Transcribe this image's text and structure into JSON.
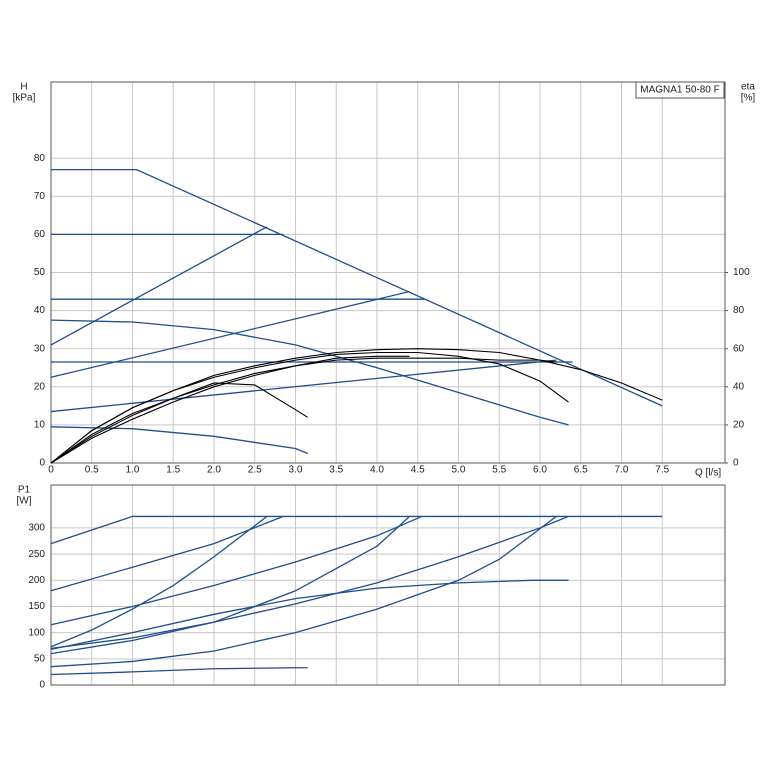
{
  "chart_data": [
    {
      "type": "line",
      "annotation": "MAGNA1 50-80 F",
      "ylabel": "H",
      "yunit": "[kPa]",
      "y2label": "eta",
      "y2unit": "[%]",
      "xlabel": "Q [l/s]",
      "xlim": [
        0,
        8.27
      ],
      "ylim": [
        0,
        100
      ],
      "y2lim": [
        0,
        200
      ],
      "grid": true,
      "xticks": [
        0,
        0.5,
        {
          "value": 1,
          "label": "1.0"
        },
        1.5,
        {
          "value": 2,
          "label": "2.0"
        },
        2.5,
        {
          "value": 3,
          "label": "3.0"
        },
        3.5,
        {
          "value": 4,
          "label": "4.0"
        },
        4.5,
        {
          "value": 5,
          "label": "5.0"
        },
        5.5,
        {
          "value": 6,
          "label": "6.0"
        },
        6.5,
        {
          "value": 7,
          "label": "7.0"
        },
        7.5
      ],
      "yticks": [
        0,
        10,
        20,
        30,
        40,
        50,
        60,
        70,
        80
      ],
      "y2ticks": [
        0,
        20,
        40,
        60,
        80,
        100
      ],
      "series": [
        {
          "color": "#1f4e8c",
          "x": [
            0,
            1.05,
            7.5
          ],
          "values": [
            77,
            77,
            15
          ]
        },
        {
          "color": "#1f4e8c",
          "x": [
            0,
            2.65
          ],
          "values": [
            31,
            62
          ]
        },
        {
          "color": "#1f4e8c",
          "x": [
            0,
            4.4
          ],
          "values": [
            22.5,
            45
          ]
        },
        {
          "color": "#1f4e8c",
          "x": [
            0,
            6.2
          ],
          "values": [
            13.5,
            27
          ]
        },
        {
          "color": "#1f4e8c",
          "x": [
            0,
            2.85
          ],
          "values": [
            60,
            60
          ]
        },
        {
          "color": "#1f4e8c",
          "x": [
            0,
            4.6
          ],
          "values": [
            43,
            43
          ]
        },
        {
          "color": "#1f4e8c",
          "x": [
            0,
            6.4
          ],
          "values": [
            26.5,
            26.5
          ]
        },
        {
          "color": "#1f4e8c",
          "x": [
            0,
            1,
            2,
            3,
            4,
            5,
            6,
            6.35
          ],
          "values": [
            37.5,
            37,
            35,
            31,
            25,
            18.5,
            12,
            10
          ]
        },
        {
          "color": "#1f4e8c",
          "x": [
            0,
            1,
            2,
            3,
            3.15
          ],
          "values": [
            9.5,
            9,
            7,
            3.8,
            2.5
          ]
        },
        {
          "color": "#000000",
          "axis": "y2",
          "x": [
            0,
            0.5,
            1,
            1.5,
            2,
            2.5,
            3,
            3.5,
            4,
            4.5,
            5,
            5.5,
            6,
            6.5,
            7,
            7.5
          ],
          "values": [
            0,
            17,
            29,
            38,
            46,
            51,
            55,
            58,
            59.5,
            60,
            59.5,
            58,
            54,
            49,
            42,
            33
          ]
        },
        {
          "color": "#000000",
          "axis": "y2",
          "x": [
            0,
            0.5,
            1,
            1.5,
            2,
            2.5,
            3,
            3.5,
            4,
            4.5,
            5,
            5.5,
            6,
            6.35
          ],
          "values": [
            0,
            17,
            29,
            38,
            45,
            50,
            54,
            57,
            58,
            58,
            56,
            52,
            43,
            32
          ]
        },
        {
          "color": "#000000",
          "axis": "y2",
          "x": [
            0,
            0.5,
            1,
            1.5,
            2,
            2.5,
            3,
            3.5,
            4,
            4.5,
            5,
            5.5,
            6,
            6.2
          ],
          "values": [
            0,
            14,
            25,
            34,
            41,
            47,
            51,
            54,
            55,
            55,
            55,
            54,
            54,
            53
          ]
        },
        {
          "color": "#000000",
          "axis": "y2",
          "x": [
            0,
            0.5,
            1,
            1.5,
            2,
            2.5,
            3,
            3.5,
            4,
            4.4
          ],
          "values": [
            0,
            13,
            23,
            32,
            40,
            46,
            51,
            55,
            56,
            56
          ]
        },
        {
          "color": "#000000",
          "axis": "y2",
          "x": [
            0,
            0.5,
            1,
            1.5,
            2,
            2.5,
            3,
            3.15
          ],
          "values": [
            0,
            15,
            26,
            34,
            42,
            41,
            28,
            24
          ]
        }
      ]
    },
    {
      "type": "line",
      "ylabel": "P1",
      "yunit": "[W]",
      "xlim": [
        0,
        8.27
      ],
      "ylim": [
        0,
        382
      ],
      "grid": true,
      "xtick_labels": false,
      "xticks": [
        0,
        0.5,
        1,
        1.5,
        2,
        2.5,
        3,
        3.5,
        4,
        4.5,
        5,
        5.5,
        6,
        6.5,
        7,
        7.5
      ],
      "yticks": [
        0,
        50,
        100,
        150,
        200,
        250,
        300
      ],
      "series": [
        {
          "color": "#1f4e8c",
          "x": [
            0,
            0.5,
            1,
            7.5
          ],
          "values": [
            270,
            296,
            322,
            322
          ]
        },
        {
          "color": "#1f4e8c",
          "x": [
            0,
            1,
            2,
            2.85
          ],
          "values": [
            180,
            225,
            270,
            322
          ]
        },
        {
          "color": "#1f4e8c",
          "x": [
            0,
            1,
            2,
            3,
            4,
            4.55
          ],
          "values": [
            115,
            150,
            190,
            235,
            285,
            322
          ]
        },
        {
          "color": "#1f4e8c",
          "x": [
            0,
            1,
            2,
            3,
            4,
            5,
            6,
            6.35
          ],
          "values": [
            70,
            90,
            120,
            155,
            195,
            245,
            300,
            322
          ]
        },
        {
          "color": "#1f4e8c",
          "x": [
            0,
            0.5,
            1,
            1.5,
            2,
            2.65
          ],
          "values": [
            73,
            105,
            145,
            190,
            245,
            322
          ]
        },
        {
          "color": "#1f4e8c",
          "x": [
            0,
            1,
            2,
            3,
            4,
            4.4
          ],
          "values": [
            60,
            85,
            120,
            180,
            265,
            322
          ]
        },
        {
          "color": "#1f4e8c",
          "x": [
            0,
            1,
            2,
            3,
            4,
            5,
            5.5,
            6.2
          ],
          "values": [
            35,
            45,
            65,
            100,
            145,
            200,
            240,
            322
          ]
        },
        {
          "color": "#1f4e8c",
          "x": [
            0,
            1,
            2,
            3,
            4,
            5,
            5.9,
            6.35
          ],
          "values": [
            68,
            100,
            135,
            165,
            185,
            195,
            200,
            200
          ]
        },
        {
          "color": "#1f4e8c",
          "x": [
            0,
            1,
            2,
            3,
            3.15
          ],
          "values": [
            20,
            25,
            31,
            33,
            33
          ]
        }
      ]
    }
  ]
}
